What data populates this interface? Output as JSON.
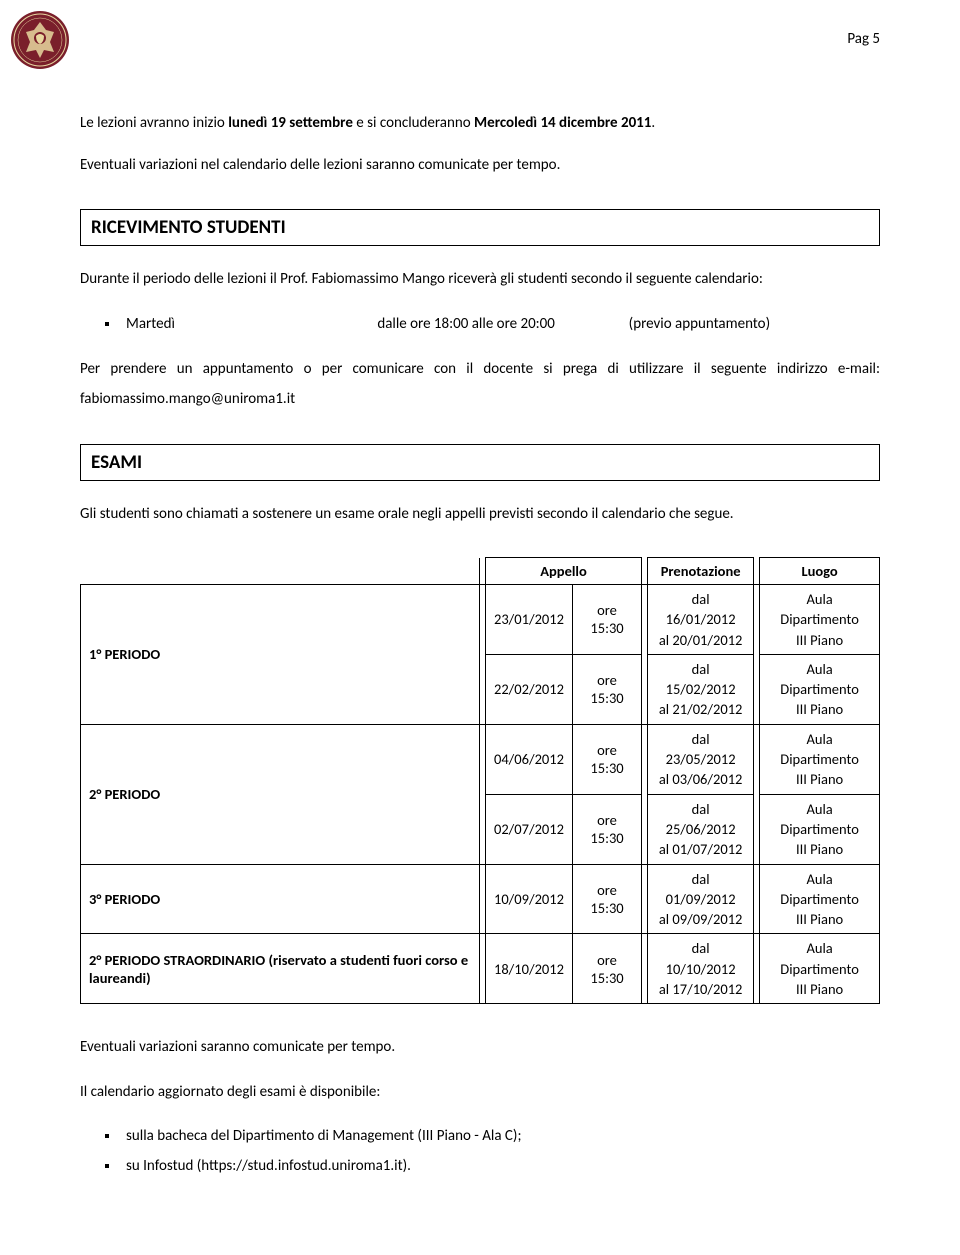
{
  "page_label": "Pag 5",
  "intro": {
    "line1_pre": "Le lezioni avranno inizio ",
    "line1_bold1": "lunedì  19 settembre",
    "line1_mid": " e si concluderanno ",
    "line1_bold2": "Mercoledì 14 dicembre 2011",
    "line1_post": ".",
    "line2": "Eventuali variazioni nel calendario delle lezioni saranno comunicate per tempo."
  },
  "ricevimento": {
    "heading": "RICEVIMENTO STUDENTI",
    "para1": "Durante il periodo delle lezioni il Prof. Fabiomassimo Mango riceverà gli studenti secondo il seguente calendario:",
    "schedule": {
      "day": "Martedì",
      "hours": "dalle ore 18:00 alle ore 20:00",
      "note": "(previo appuntamento)"
    },
    "para2": "Per prendere un appuntamento o per comunicare con il docente si prega di utilizzare il seguente indirizzo e-mail:  fabiomassimo.mango@uniroma1.it"
  },
  "esami": {
    "heading": "ESAMI",
    "intro": "Gli studenti sono chiamati a sostenere un esame orale negli appelli previsti secondo il calendario che segue.",
    "headers": {
      "appello": "Appello",
      "prenotazione": "Prenotazione",
      "luogo": "Luogo"
    },
    "rows": [
      {
        "periodo": "1° PERIODO",
        "rowspan": 2,
        "date": "23/01/2012",
        "time": "ore 15:30",
        "pren1": "dal 16/01/2012",
        "pren2": "al 20/01/2012",
        "luogo1": "Aula Dipartimento",
        "luogo2": "III Piano"
      },
      {
        "date": "22/02/2012",
        "time": "ore 15:30",
        "pren1": "dal 15/02/2012",
        "pren2": "al 21/02/2012",
        "luogo1": "Aula Dipartimento",
        "luogo2": "III Piano"
      },
      {
        "periodo": "2° PERIODO",
        "rowspan": 2,
        "date": "04/06/2012",
        "time": "ore 15:30",
        "pren1": "dal 23/05/2012",
        "pren2": "al 03/06/2012",
        "luogo1": "Aula Dipartimento",
        "luogo2": "III Piano"
      },
      {
        "date": "02/07/2012",
        "time": "ore 15:30",
        "pren1": "dal 25/06/2012",
        "pren2": "al 01/07/2012",
        "luogo1": "Aula Dipartimento",
        "luogo2": "III Piano"
      },
      {
        "periodo": "3° PERIODO",
        "rowspan": 1,
        "date": "10/09/2012",
        "time": "ore 15:30",
        "pren1": "dal 01/09/2012",
        "pren2": "al 09/09/2012",
        "luogo1": "Aula Dipartimento",
        "luogo2": "III Piano"
      },
      {
        "periodo": "2° PERIODO STRAORDINARIO (riservato a studenti fuori corso e laureandi)",
        "rowspan": 1,
        "date": "18/10/2012",
        "time": "ore 15:30",
        "pren1": "dal 10/10/2012",
        "pren2": "al 17/10/2012",
        "luogo1": "Aula Dipartimento",
        "luogo2": "III Piano"
      }
    ],
    "footer1": "Eventuali variazioni saranno comunicate per tempo.",
    "footer2": "Il calendario aggiornato degli esami è disponibile:",
    "bullets": [
      "sulla bacheca del Dipartimento di Management (III Piano - Ala C);",
      "su Infostud (https://stud.infostud.uniroma1.it)."
    ]
  },
  "colors": {
    "logo_bg": "#7a1f2b",
    "logo_ring": "#ffffff",
    "logo_inner": "#e8d8a0"
  }
}
